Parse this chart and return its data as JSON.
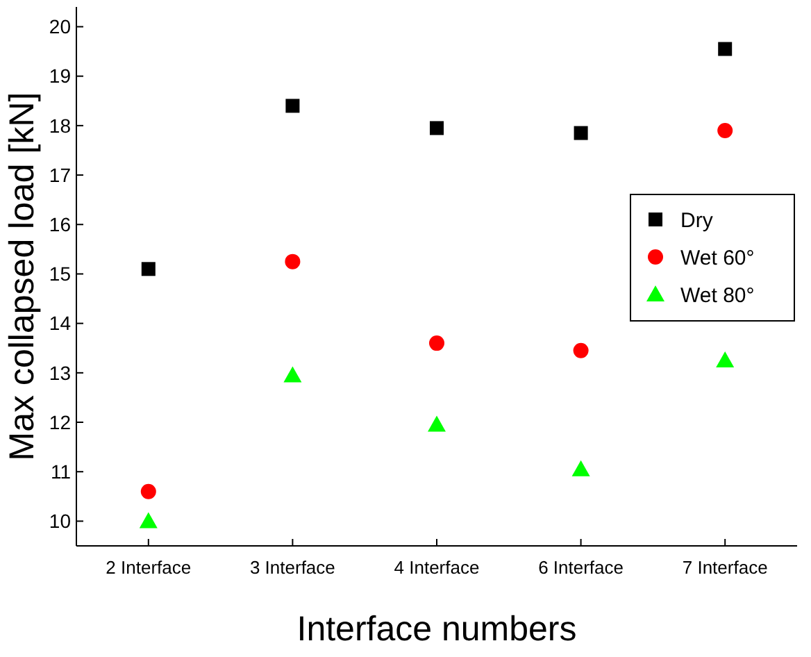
{
  "chart_data": {
    "type": "scatter",
    "xlabel": "Interface numbers",
    "ylabel": "Max collapsed load [kN]",
    "categories": [
      "2 Interface",
      "3 Interface",
      "4 Interface",
      "6 Interface",
      "7 Interface"
    ],
    "ylim": [
      9.5,
      20.4
    ],
    "yticks": [
      10,
      11,
      12,
      13,
      14,
      15,
      16,
      17,
      18,
      19,
      20
    ],
    "legend": "right",
    "grid": false,
    "series": [
      {
        "name": "Dry",
        "color": "#000000",
        "marker": "square",
        "values": [
          15.1,
          18.4,
          17.95,
          17.85,
          19.55
        ]
      },
      {
        "name": "Wet 60°",
        "color": "#ff0000",
        "marker": "circle",
        "values": [
          10.6,
          15.25,
          13.6,
          13.45,
          17.9
        ]
      },
      {
        "name": "Wet 80°",
        "color": "#00ff00",
        "marker": "triangle",
        "values": [
          10.0,
          12.95,
          11.95,
          11.05,
          13.25
        ]
      }
    ]
  }
}
